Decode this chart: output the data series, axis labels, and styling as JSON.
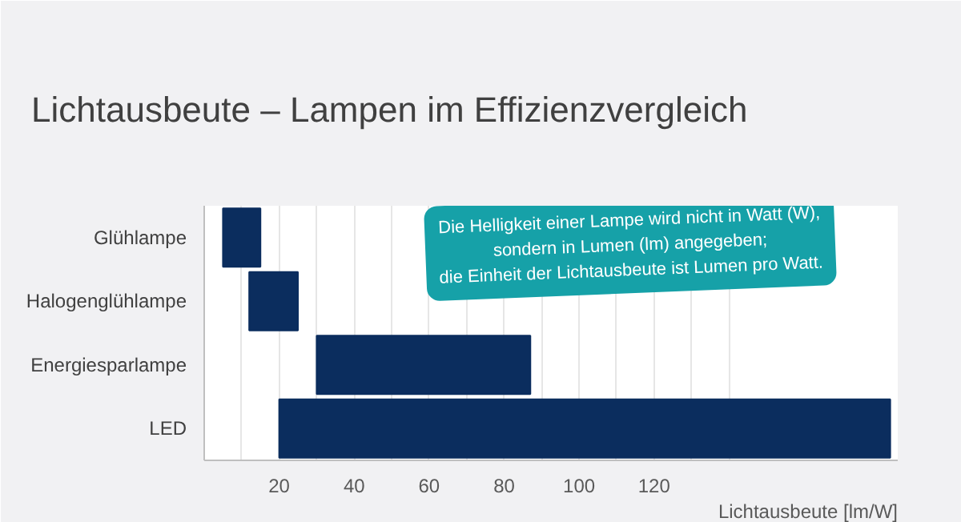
{
  "chart_data": {
    "type": "bar",
    "orientation": "horizontal",
    "title": "Lichtausbeute – Lampen im Effizienzvergleich",
    "xlabel": "Lichtausbeute [lm/W]",
    "categories": [
      "Glühlampe",
      "Halogenglühlampe",
      "Energiesparlampe",
      "LED"
    ],
    "base": [
      5,
      12,
      30,
      20
    ],
    "values": [
      10,
      13,
      57,
      163
    ],
    "color": "#0b2d5e",
    "xlim": [
      0,
      185
    ],
    "xticks": [
      {
        "value": 10,
        "label": null
      },
      20,
      {
        "value": 30,
        "label": null
      },
      40,
      {
        "value": 50,
        "label": null
      },
      60,
      {
        "value": 70,
        "label": null
      },
      80,
      {
        "value": 90,
        "label": null
      },
      100,
      {
        "value": 110,
        "label": null
      },
      120,
      {
        "value": 130,
        "label": null
      },
      {
        "value": 140,
        "label": null
      }
    ],
    "grid": "x",
    "annotations": [
      "Die Helligkeit einer Lampe wird nicht in Watt (W),\nsondern in Lumen (lm) angegeben;\ndie Einheit der Lichtausbeute ist Lumen pro Watt."
    ]
  }
}
